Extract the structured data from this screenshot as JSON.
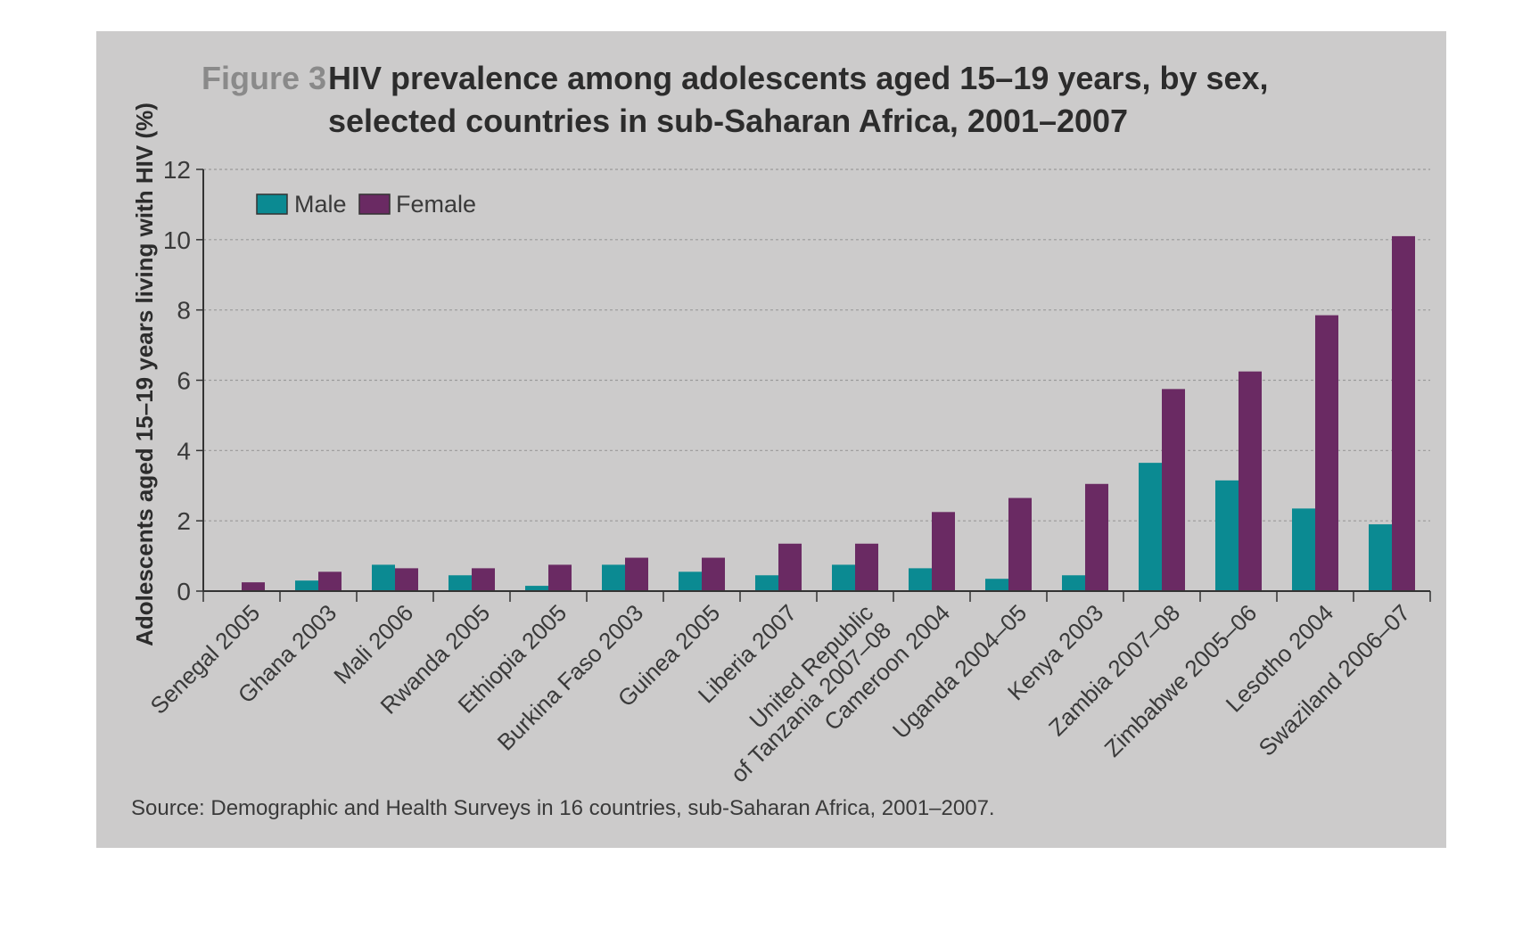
{
  "figure_label": "Figure 3",
  "title_line1": "HIV prevalence among adolescents aged 15–19 years, by sex,",
  "title_line2": "selected countries in sub-Saharan Africa, 2001–2007",
  "source": "Source: Demographic and Health Surveys in 16 countries, sub-Saharan Africa, 2001–2007.",
  "colors": {
    "male": "#0b8a92",
    "female": "#6a2a63",
    "panel": "#cccbcb",
    "grid": "#9a9a9a"
  },
  "chart_data": {
    "type": "bar",
    "title": "HIV prevalence among adolescents aged 15–19 years, by sex, selected countries in sub-Saharan Africa, 2001–2007",
    "ylabel": "Adolescents aged 15–19 years living with HIV (%)",
    "xlabel": "",
    "ylim": [
      0,
      12
    ],
    "yticks": [
      0,
      2,
      4,
      6,
      8,
      10,
      12
    ],
    "grid": true,
    "legend_position": "top-left",
    "categories": [
      [
        "Senegal 2005"
      ],
      [
        "Ghana 2003"
      ],
      [
        "Mali 2006"
      ],
      [
        "Rwanda 2005"
      ],
      [
        "Ethiopia 2005"
      ],
      [
        "Burkina Faso 2003"
      ],
      [
        "Guinea 2005"
      ],
      [
        "Liberia 2007"
      ],
      [
        "United Republic",
        "of Tanzania 2007–08"
      ],
      [
        "Cameroon 2004"
      ],
      [
        "Uganda 2004–05"
      ],
      [
        "Kenya 2003"
      ],
      [
        "Zambia 2007–08"
      ],
      [
        "Zimbabwe 2005–06"
      ],
      [
        "Lesotho 2004"
      ],
      [
        "Swaziland 2006–07"
      ]
    ],
    "series": [
      {
        "name": "Male",
        "values": [
          0.0,
          0.3,
          0.75,
          0.45,
          0.15,
          0.75,
          0.55,
          0.45,
          0.75,
          0.65,
          0.35,
          0.45,
          3.65,
          3.15,
          2.35,
          1.9
        ]
      },
      {
        "name": "Female",
        "values": [
          0.25,
          0.55,
          0.65,
          0.65,
          0.75,
          0.95,
          0.95,
          1.35,
          1.35,
          2.25,
          2.65,
          3.05,
          5.75,
          6.25,
          7.85,
          10.1
        ]
      }
    ]
  }
}
